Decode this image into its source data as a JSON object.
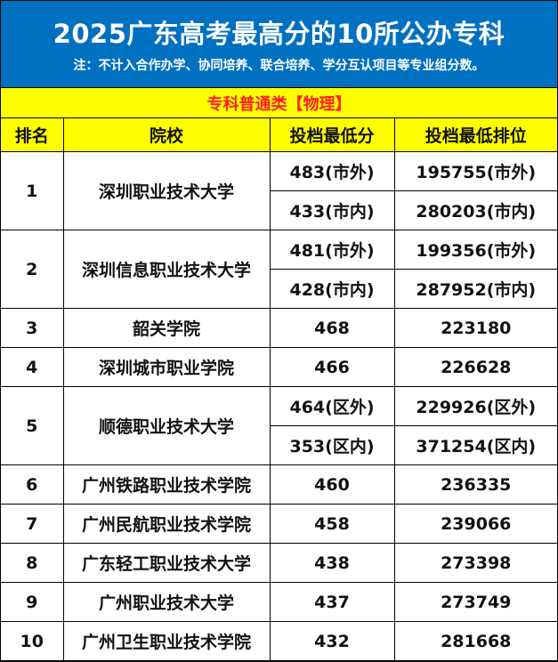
{
  "title": "2025广东高考最高分的10所公办专科",
  "note": "注：不计入合作办学、协同培养、联合培养、学分互认项目等专业组分数。",
  "category": "专科普通类【物理】",
  "colors": {
    "banner": "#0070C0",
    "header": "#FFFF00",
    "category_text": "#FF2020"
  },
  "columns": [
    "排名",
    "院校",
    "投档最低分",
    "投档最低排位"
  ],
  "rows": [
    {
      "rank": "1",
      "school": "深圳职业技术大学",
      "entries": [
        {
          "score": "483(市外)",
          "position": "195755(市外)"
        },
        {
          "score": "433(市内)",
          "position": "280203(市内)"
        }
      ]
    },
    {
      "rank": "2",
      "school": "深圳信息职业技术大学",
      "entries": [
        {
          "score": "481(市外)",
          "position": "199356(市外)"
        },
        {
          "score": "428(市内)",
          "position": "287952(市内)"
        }
      ]
    },
    {
      "rank": "3",
      "school": "韶关学院",
      "entries": [
        {
          "score": "468",
          "position": "223180"
        }
      ]
    },
    {
      "rank": "4",
      "school": "深圳城市职业学院",
      "entries": [
        {
          "score": "466",
          "position": "226628"
        }
      ]
    },
    {
      "rank": "5",
      "school": "顺德职业技术大学",
      "entries": [
        {
          "score": "464(区外)",
          "position": "229926(区外)"
        },
        {
          "score": "353(区内)",
          "position": "371254(区内)"
        }
      ]
    },
    {
      "rank": "6",
      "school": "广州铁路职业技术学院",
      "entries": [
        {
          "score": "460",
          "position": "236335"
        }
      ]
    },
    {
      "rank": "7",
      "school": "广州民航职业技术学院",
      "entries": [
        {
          "score": "458",
          "position": "239066"
        }
      ]
    },
    {
      "rank": "8",
      "school": "广东轻工职业技术大学",
      "entries": [
        {
          "score": "438",
          "position": "273398"
        }
      ]
    },
    {
      "rank": "9",
      "school": "广州职业技术大学",
      "entries": [
        {
          "score": "437",
          "position": "273749"
        }
      ]
    },
    {
      "rank": "10",
      "school": "广州卫生职业技术学院",
      "entries": [
        {
          "score": "432",
          "position": "281668"
        }
      ]
    }
  ]
}
